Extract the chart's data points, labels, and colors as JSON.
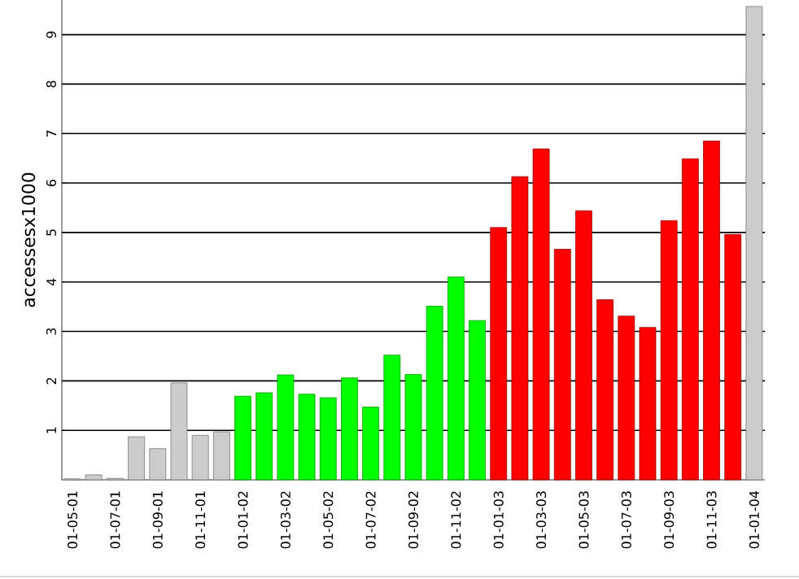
{
  "chart_data": {
    "type": "bar",
    "ylabel": "accessesx1000",
    "categories": [
      "01-05-01",
      null,
      "01-07-01",
      null,
      "01-09-01",
      null,
      "01-11-01",
      null,
      "01-01-02",
      null,
      "01-03-02",
      null,
      "01-05-02",
      null,
      "01-07-02",
      null,
      "01-09-02",
      null,
      "01-11-02",
      null,
      "01-01-03",
      null,
      "01-03-03",
      null,
      "01-05-03",
      null,
      "01-07-03",
      null,
      "01-09-03",
      null,
      "01-11-03",
      null,
      "01-01-04"
    ],
    "values": [
      0.02,
      0.1,
      0.03,
      0.87,
      0.63,
      1.96,
      0.9,
      0.97,
      1.69,
      1.76,
      2.12,
      1.73,
      1.66,
      2.06,
      1.47,
      2.52,
      2.13,
      3.51,
      4.1,
      3.22,
      5.1,
      6.13,
      6.69,
      4.66,
      5.44,
      3.64,
      3.31,
      3.08,
      5.24,
      6.49,
      6.85,
      4.96,
      9.57
    ],
    "colors": [
      "#cccccc",
      "#cccccc",
      "#cccccc",
      "#cccccc",
      "#cccccc",
      "#cccccc",
      "#cccccc",
      "#cccccc",
      "#00ff00",
      "#00ff00",
      "#00ff00",
      "#00ff00",
      "#00ff00",
      "#00ff00",
      "#00ff00",
      "#00ff00",
      "#00ff00",
      "#00ff00",
      "#00ff00",
      "#00ff00",
      "#ff0000",
      "#ff0000",
      "#ff0000",
      "#ff0000",
      "#ff0000",
      "#ff0000",
      "#ff0000",
      "#ff0000",
      "#ff0000",
      "#ff0000",
      "#ff0000",
      "#ff0000",
      "#cccccc"
    ],
    "ylim": [
      0,
      9.7
    ],
    "yticks": [
      1,
      2,
      3,
      4,
      5,
      6,
      7,
      8,
      9
    ],
    "grid": "y"
  }
}
